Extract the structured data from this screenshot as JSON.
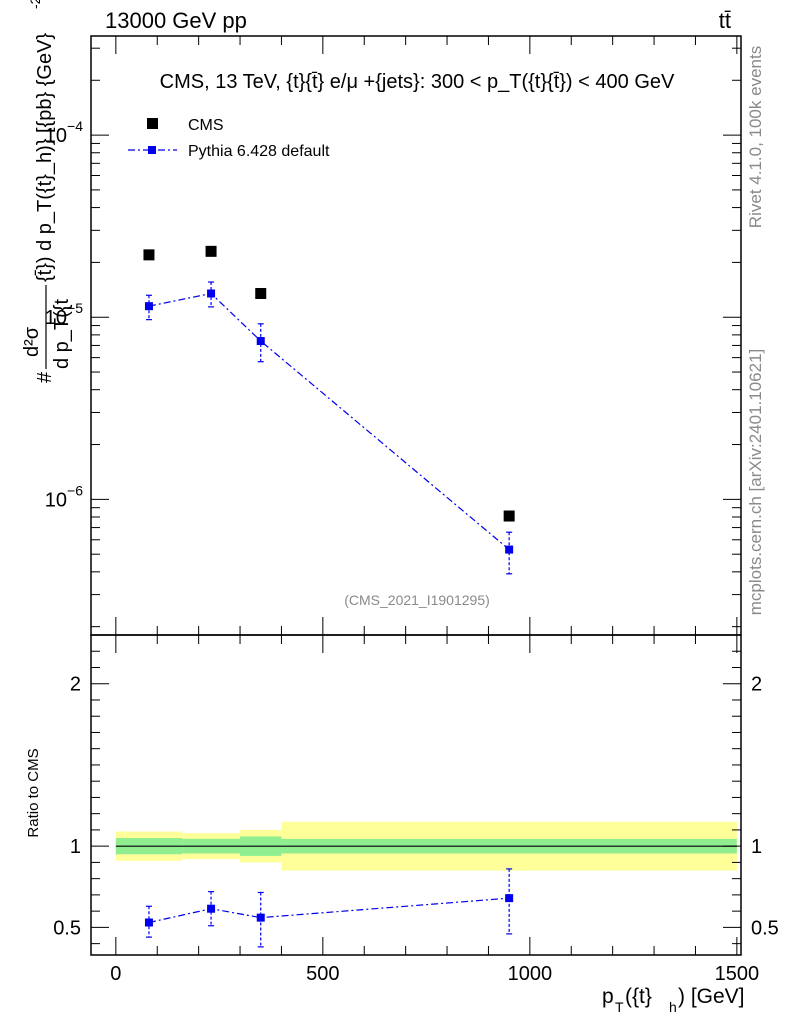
{
  "header": {
    "left": "13000 GeV pp",
    "right": "tt̄"
  },
  "side": {
    "rivet": "Rivet 4.1.0,  100k events",
    "mcplots": "mcplots.cern.ch [arXiv:2401.10621]"
  },
  "chart_data": [
    {
      "type": "scatter",
      "panel": "main",
      "title": "CMS, 13 TeV, {t}{t̄} e/μ +{jets}: 300 <  p_T({t}{t̄}) < 400 GeV",
      "ylabel": "# d²σ / d p_T({t}) d p_T({t}_h) [{pb} {GeV}⁻²]",
      "ylabel_parts": {
        "hash": "#",
        "num": "d²σ",
        "den": "d p_T({t",
        "tail": "{t̄}) d p_T({t}_h)} [{pb} {GeV}",
        "exp": "-2",
        "close": "]"
      },
      "yscale": "log",
      "ylim": [
        1.8e-07,
        0.00035
      ],
      "xlim": [
        -60,
        1510
      ],
      "yticks": [
        {
          "value": 1e-06,
          "base": "10",
          "exp": "−6"
        },
        {
          "value": 1e-05,
          "base": "10",
          "exp": "−5"
        },
        {
          "value": 0.0001,
          "base": "10",
          "exp": "−4"
        }
      ],
      "watermark": "(CMS_2021_I1901295)",
      "legend_position": "top-left",
      "series": [
        {
          "name": "CMS",
          "color": "#000000",
          "marker": "square",
          "x": [
            80,
            230,
            350,
            950
          ],
          "y": [
            2.2e-05,
            2.3e-05,
            1.35e-05,
            8.1e-07
          ]
        },
        {
          "name": "Pythia 6.428 default",
          "color": "#0000ee",
          "marker": "square",
          "line": "dash-dot",
          "x": [
            80,
            230,
            350,
            950
          ],
          "y": [
            1.15e-05,
            1.35e-05,
            7.4e-06,
            5.3e-07
          ],
          "yerr_low": [
            9.7e-06,
            1.14e-05,
            5.7e-06,
            3.9e-07
          ],
          "yerr_high": [
            1.32e-05,
            1.56e-05,
            9.2e-06,
            6.6e-07
          ]
        }
      ]
    },
    {
      "type": "scatter",
      "panel": "ratio",
      "ylabel": "Ratio to CMS",
      "xlabel_parts": {
        "p": "p",
        "sub1": "T",
        "mid": "({t}",
        "sub2": "h",
        "end": ") [GeV]"
      },
      "xlim": [
        -60,
        1510
      ],
      "ylim": [
        0.33,
        2.3
      ],
      "xticks": [
        0,
        500,
        1000,
        1500
      ],
      "yticks": [
        0.5,
        1,
        2
      ],
      "reference_line": 1,
      "bands": {
        "inner_color": "#90ee90",
        "outer_color": "#ffff99",
        "bins": [
          {
            "x0": 0,
            "x1": 160,
            "inner": [
              0.95,
              1.05
            ],
            "outer": [
              0.91,
              1.09
            ]
          },
          {
            "x0": 160,
            "x1": 300,
            "inner": [
              0.955,
              1.045
            ],
            "outer": [
              0.92,
              1.08
            ]
          },
          {
            "x0": 300,
            "x1": 400,
            "inner": [
              0.94,
              1.06
            ],
            "outer": [
              0.9,
              1.1
            ]
          },
          {
            "x0": 400,
            "x1": 1500,
            "inner": [
              0.955,
              1.045
            ],
            "outer": [
              0.85,
              1.15
            ]
          }
        ]
      },
      "series": [
        {
          "name": "Pythia 6.428 default",
          "color": "#0000ee",
          "x": [
            80,
            230,
            350,
            950
          ],
          "y": [
            0.53,
            0.615,
            0.56,
            0.68
          ],
          "yerr_low": [
            0.44,
            0.51,
            0.38,
            0.46
          ],
          "yerr_high": [
            0.63,
            0.72,
            0.715,
            0.86
          ]
        }
      ]
    }
  ]
}
